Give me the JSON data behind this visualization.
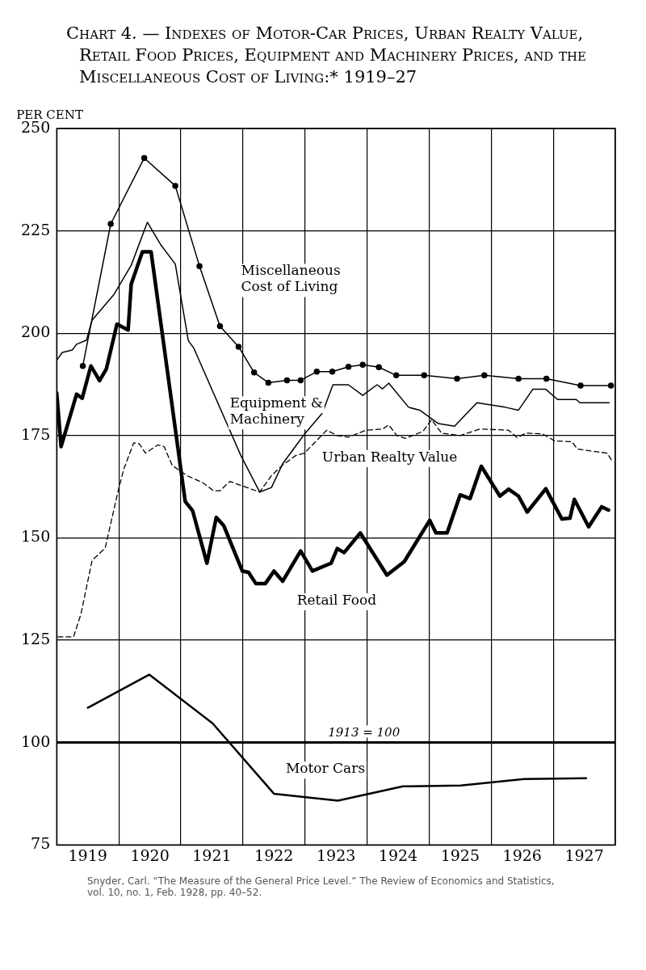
{
  "chart_data": {
    "type": "line",
    "title": "Chart 4. — Indexes of Motor-Car Prices, Urban Realty Value, Retail Food Prices, Equipment and Machinery Prices, and the Miscellaneous Cost of Living:* 1919–27",
    "ylabel": "PER CENT",
    "xlim": [
      1919,
      1928
    ],
    "xticks": [
      {
        "value": 1919,
        "label": null
      },
      {
        "value": 1919.5,
        "label": "1919"
      },
      {
        "value": 1920,
        "label": null
      },
      {
        "value": 1920.5,
        "label": "1920"
      },
      {
        "value": 1921,
        "label": null
      },
      {
        "value": 1921.5,
        "label": "1921"
      },
      {
        "value": 1922,
        "label": null
      },
      {
        "value": 1922.5,
        "label": "1922"
      },
      {
        "value": 1923,
        "label": null
      },
      {
        "value": 1923.5,
        "label": "1923"
      },
      {
        "value": 1924,
        "label": null
      },
      {
        "value": 1924.5,
        "label": "1924"
      },
      {
        "value": 1925,
        "label": null
      },
      {
        "value": 1925.5,
        "label": "1925"
      },
      {
        "value": 1926,
        "label": null
      },
      {
        "value": 1926.5,
        "label": "1926"
      },
      {
        "value": 1927,
        "label": null
      },
      {
        "value": 1927.5,
        "label": "1927"
      },
      {
        "value": 1928,
        "label": null
      }
    ],
    "ylim": [
      75,
      250
    ],
    "yticks": [
      75,
      100,
      125,
      150,
      175,
      200,
      225,
      250
    ],
    "grid": true,
    "legend": false,
    "series": [
      {
        "name": "Miscellaneous Cost of Living",
        "color": "#000000",
        "marker": "circle",
        "line_style": "solid",
        "x": [
          1919.42,
          1919.87,
          1920.41,
          1920.91,
          1921.3,
          1921.63,
          1921.93,
          1922.18,
          1922.41,
          1922.71,
          1922.93,
          1923.19,
          1923.44,
          1923.7,
          1923.93,
          1924.19,
          1924.47,
          1924.92,
          1925.45,
          1925.89,
          1926.44,
          1926.89,
          1927.44,
          1927.93
        ],
        "values": [
          192,
          226.7,
          242.8,
          236,
          216.4,
          201.7,
          196.7,
          190.4,
          187.9,
          188.5,
          188.5,
          190.6,
          190.6,
          191.8,
          192.3,
          191.7,
          189.7,
          189.7,
          188.9,
          189.7,
          188.9,
          188.9,
          187.2,
          187.2
        ]
      },
      {
        "name": "Equipment & Machinery",
        "color": "#000000",
        "marker": "none",
        "line_style": "solid",
        "x": [
          1919,
          1919.09,
          1919.25,
          1919.32,
          1919.48,
          1919.57,
          1919.92,
          1920.2,
          1920.46,
          1920.68,
          1920.91,
          1921.12,
          1921.21,
          1921.97,
          1922.27,
          1922.46,
          1922.64,
          1922.99,
          1923.28,
          1923.45,
          1923.7,
          1923.93,
          1924.16,
          1924.25,
          1924.35,
          1924.67,
          1924.85,
          1925.15,
          1925.41,
          1925.77,
          1926.23,
          1926.44,
          1926.67,
          1926.88,
          1927.07,
          1927.37,
          1927.43,
          1927.9
        ],
        "values": [
          193.4,
          195.3,
          195.9,
          197.3,
          198.3,
          203.2,
          209.4,
          216.6,
          227.1,
          221.5,
          216.9,
          198.2,
          196.3,
          170,
          161.2,
          162.3,
          168.1,
          175.3,
          180.5,
          187.4,
          187.4,
          184.8,
          187.4,
          186.4,
          187.8,
          181.9,
          181.2,
          177.9,
          177.3,
          183,
          181.9,
          181.2,
          186.3,
          186.3,
          183.8,
          183.8,
          183,
          183
        ]
      },
      {
        "name": "Urban Realty Value",
        "color": "#000000",
        "marker": "none",
        "line_style": "dashed",
        "x": [
          1919.02,
          1919.27,
          1919.39,
          1919.57,
          1919.78,
          1919.99,
          1920.08,
          1920.24,
          1920.33,
          1920.43,
          1920.63,
          1920.73,
          1920.86,
          1921.1,
          1921.35,
          1921.53,
          1921.63,
          1921.79,
          1921.95,
          1922.27,
          1922.46,
          1922.64,
          1922.85,
          1922.99,
          1923.35,
          1923.52,
          1923.7,
          1923.98,
          1924.25,
          1924.35,
          1924.48,
          1924.62,
          1924.9,
          1925.04,
          1925.2,
          1925.5,
          1925.82,
          1926.28,
          1926.42,
          1926.56,
          1926.83,
          1927.02,
          1927.3,
          1927.39,
          1927.67,
          1927.87,
          1927.95
        ],
        "values": [
          125.8,
          125.8,
          131.4,
          144.5,
          147.5,
          161.5,
          166.8,
          173.2,
          173,
          170.7,
          172.7,
          172.3,
          167.7,
          165.2,
          163.5,
          161.5,
          161.5,
          163.8,
          162.9,
          161.2,
          165.2,
          167.8,
          170.1,
          170.7,
          176.3,
          175,
          174.6,
          176.3,
          176.6,
          177.6,
          175,
          174.3,
          176,
          178.9,
          175.6,
          175,
          176.6,
          176.3,
          174.5,
          175.6,
          175.4,
          173.7,
          173.5,
          171.7,
          171.1,
          170.7,
          168.7
        ]
      },
      {
        "name": "Retail Food",
        "color": "#000000",
        "marker": "none",
        "line_style": "solid",
        "x": [
          1919,
          1919.07,
          1919.32,
          1919.41,
          1919.55,
          1919.69,
          1919.8,
          1919.97,
          1920.15,
          1920.2,
          1920.38,
          1920.52,
          1921.07,
          1921.19,
          1921.42,
          1921.57,
          1921.69,
          1921.99,
          1922.09,
          1922.21,
          1922.36,
          1922.5,
          1922.64,
          1922.93,
          1923.12,
          1923.42,
          1923.52,
          1923.63,
          1923.89,
          1924.32,
          1924.6,
          1925.01,
          1925.11,
          1925.29,
          1925.5,
          1925.66,
          1925.84,
          1926.14,
          1926.28,
          1926.44,
          1926.58,
          1926.88,
          1927.14,
          1927.27,
          1927.34,
          1927.57,
          1927.78,
          1927.89
        ],
        "values": [
          185.4,
          172.3,
          185.1,
          184.1,
          192,
          188.4,
          191.3,
          202.2,
          200.8,
          212,
          219.9,
          219.9,
          158.9,
          156.6,
          143.8,
          155,
          153,
          141.9,
          141.6,
          138.8,
          138.8,
          141.9,
          139.4,
          146.8,
          141.9,
          143.8,
          147.4,
          146.4,
          151.2,
          140.9,
          144.2,
          154.3,
          151.2,
          151.2,
          160.5,
          159.6,
          167.5,
          160.2,
          161.9,
          160.2,
          156.3,
          162,
          154.6,
          154.8,
          159.4,
          152.7,
          157.6,
          156.8
        ]
      },
      {
        "name": "Motor Cars",
        "color": "#000000",
        "marker": "none",
        "line_style": "solid",
        "x": [
          1919.5,
          1920.49,
          1921.51,
          1922.5,
          1923.53,
          1924.58,
          1925.51,
          1926.53,
          1927.53
        ],
        "values": [
          108.5,
          116.6,
          104.7,
          87.5,
          85.8,
          89.3,
          89.5,
          91.1,
          91.3
        ]
      }
    ],
    "ref_lines": [
      {
        "axis": "y",
        "value": 100,
        "label": "1913 = 100",
        "color": "#000000"
      }
    ],
    "annotations": [
      "Snyder, Carl. “The Measure of the General Price Level.” The Review of Economics and Statistics, vol. 10, no. 1, Feb. 1928, pp. 40–52."
    ]
  }
}
